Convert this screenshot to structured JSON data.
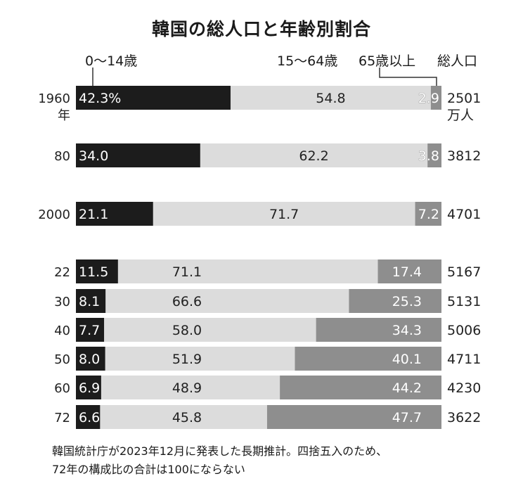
{
  "title": "韓国の総人口と年齢別割合",
  "headers": {
    "young": "0〜14歳",
    "working": "15〜64歳",
    "elderly": "65歳以上",
    "total": "総人口"
  },
  "colors": {
    "young": "#1c1c1c",
    "working": "#dcdcdc",
    "elderly": "#8e8e8e"
  },
  "chart_data": {
    "type": "bar",
    "stacked": true,
    "orientation": "horizontal",
    "title": "韓国の総人口と年齢別割合",
    "categories": [
      "1960",
      "80",
      "2000",
      "22",
      "30",
      "40",
      "50",
      "60",
      "72"
    ],
    "series": [
      {
        "name": "0〜14歳",
        "values": [
          42.3,
          34.0,
          21.1,
          11.5,
          8.1,
          7.7,
          8.0,
          6.9,
          6.6
        ],
        "labels": [
          "42.3%",
          "34.0",
          "21.1",
          "11.5",
          "8.1",
          "7.7",
          "8.0",
          "6.9",
          "6.6"
        ]
      },
      {
        "name": "15〜64歳",
        "values": [
          54.8,
          62.2,
          71.7,
          71.1,
          66.6,
          58.0,
          51.9,
          48.9,
          45.8
        ],
        "labels": [
          "54.8",
          "62.2",
          "71.7",
          "71.1",
          "66.6",
          "58.0",
          "51.9",
          "48.9",
          "45.8"
        ]
      },
      {
        "name": "65歳以上",
        "values": [
          2.9,
          3.8,
          7.2,
          17.4,
          25.3,
          34.3,
          40.1,
          44.2,
          47.7
        ],
        "labels": [
          "2.9",
          "3.8",
          "7.2",
          "17.4",
          "25.3",
          "34.3",
          "40.1",
          "44.2",
          "47.7"
        ]
      }
    ],
    "total_population": [
      "2501",
      "3812",
      "4701",
      "5167",
      "5131",
      "5006",
      "4711",
      "4230",
      "3622"
    ],
    "total_unit": "万人",
    "year_unit": "年",
    "xlim": [
      0,
      100
    ]
  },
  "note": [
    "韓国統計庁が2023年12月に発表した長期推計。四捨五入のため、",
    "72年の構成比の合計は100にならない"
  ]
}
